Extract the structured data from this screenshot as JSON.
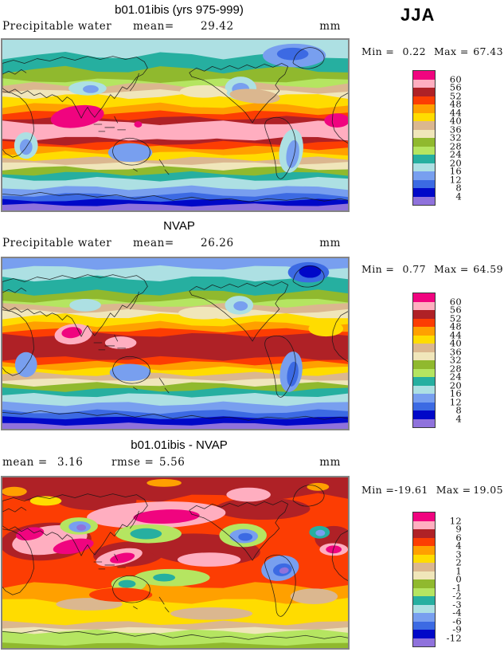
{
  "season": "JJA",
  "palette_top_to_bottom": [
    "#f0047f",
    "#ffaec0",
    "#af2126",
    "#fc3d03",
    "#ffa000",
    "#ffdc00",
    "#dbb78f",
    "#f0e6ba",
    "#90b92e",
    "#b5e561",
    "#26afa0",
    "#ade0e3",
    "#789fef",
    "#3c6ae3",
    "#0008c8",
    "#8f72dc"
  ],
  "panels": [
    {
      "title": "b01.01ibis (yrs 975-999)",
      "var_label": "Precipitable water",
      "mean_label": "mean=",
      "mean_value": "29.42",
      "units": "mm",
      "min_label": "Min =",
      "min_value": "0.22",
      "max_label": "Max =",
      "max_value": "67.43",
      "levels": [
        "60",
        "56",
        "52",
        "48",
        "44",
        "40",
        "36",
        "32",
        "28",
        "24",
        "20",
        "16",
        "12",
        "8",
        "4"
      ]
    },
    {
      "title": "NVAP",
      "var_label": "Precipitable water",
      "mean_label": "mean=",
      "mean_value": "26.26",
      "units": "mm",
      "min_label": "Min =",
      "min_value": "0.77",
      "max_label": "Max =",
      "max_value": "64.59",
      "levels": [
        "60",
        "56",
        "52",
        "48",
        "44",
        "40",
        "36",
        "32",
        "28",
        "24",
        "20",
        "16",
        "12",
        "8",
        "4"
      ]
    },
    {
      "title": "b01.01ibis - NVAP",
      "mean_label": "mean =",
      "mean_value": "3.16",
      "rmse_label": "rmse =",
      "rmse_value": "5.56",
      "units": "mm",
      "min_label": "Min =",
      "min_value": "-19.61",
      "max_label": "Max =",
      "max_value": "19.05",
      "levels": [
        "12",
        "9",
        "6",
        "4",
        "3",
        "2",
        "1",
        "0",
        "-1",
        "-2",
        "-3",
        "-4",
        "-6",
        "-9",
        "-12"
      ]
    }
  ],
  "chart_data": [
    {
      "type": "heatmap",
      "subtype": "filled-contour global latitude-longitude map",
      "title": "b01.01ibis (yrs 975-999)",
      "variable": "Precipitable water",
      "season": "JJA",
      "units": "mm",
      "mean": 29.42,
      "min": 0.22,
      "max": 67.43,
      "contour_levels": [
        4,
        8,
        12,
        16,
        20,
        24,
        28,
        32,
        36,
        40,
        44,
        48,
        52,
        56,
        60
      ],
      "palette_low_to_high": [
        "#8f72dc",
        "#0008c8",
        "#3c6ae3",
        "#789fef",
        "#ade0e3",
        "#26afa0",
        "#b5e561",
        "#90b92e",
        "#f0e6ba",
        "#dbb78f",
        "#ffdc00",
        "#ffa000",
        "#fc3d03",
        "#af2126",
        "#ffaec0",
        "#f0047f"
      ],
      "legend_position": "right"
    },
    {
      "type": "heatmap",
      "subtype": "filled-contour global latitude-longitude map",
      "title": "NVAP",
      "variable": "Precipitable water",
      "season": "JJA",
      "units": "mm",
      "mean": 26.26,
      "min": 0.77,
      "max": 64.59,
      "contour_levels": [
        4,
        8,
        12,
        16,
        20,
        24,
        28,
        32,
        36,
        40,
        44,
        48,
        52,
        56,
        60
      ],
      "palette_low_to_high": [
        "#8f72dc",
        "#0008c8",
        "#3c6ae3",
        "#789fef",
        "#ade0e3",
        "#26afa0",
        "#b5e561",
        "#90b92e",
        "#f0e6ba",
        "#dbb78f",
        "#ffdc00",
        "#ffa000",
        "#fc3d03",
        "#af2126",
        "#ffaec0",
        "#f0047f"
      ],
      "legend_position": "right"
    },
    {
      "type": "heatmap",
      "subtype": "filled-contour global latitude-longitude difference map",
      "title": "b01.01ibis - NVAP",
      "variable": "Precipitable water difference",
      "season": "JJA",
      "units": "mm",
      "mean": 3.16,
      "rmse": 5.56,
      "min": -19.61,
      "max": 19.05,
      "contour_levels": [
        -12,
        -9,
        -6,
        -4,
        -3,
        -2,
        -1,
        0,
        1,
        2,
        3,
        4,
        6,
        9,
        12
      ],
      "palette_low_to_high": [
        "#8f72dc",
        "#0008c8",
        "#3c6ae3",
        "#789fef",
        "#ade0e3",
        "#26afa0",
        "#b5e561",
        "#90b92e",
        "#f0e6ba",
        "#dbb78f",
        "#ffdc00",
        "#ffa000",
        "#fc3d03",
        "#af2126",
        "#ffaec0",
        "#f0047f"
      ],
      "legend_position": "right"
    }
  ]
}
